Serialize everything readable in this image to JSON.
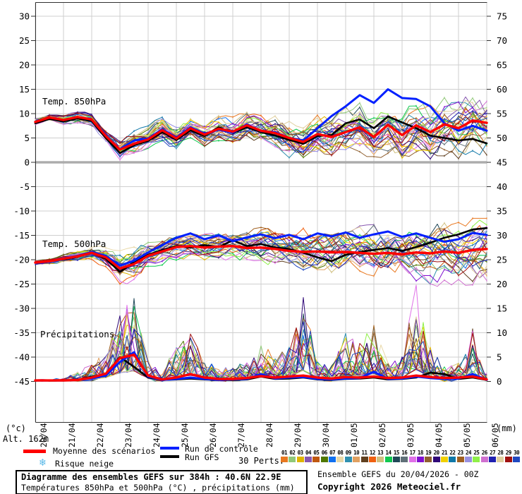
{
  "axes": {
    "left_unit": "(°c)",
    "right_unit": "(mm)",
    "altitude": "Alt. 162m",
    "left_ticks": [
      "30",
      "25",
      "20",
      "15",
      "10",
      "5",
      "0",
      "-5",
      "-10",
      "-15",
      "-20",
      "-25",
      "-30",
      "-35",
      "-40",
      "-45"
    ],
    "right_ticks": [
      "75",
      "70",
      "65",
      "60",
      "55",
      "50",
      "45",
      "40",
      "35",
      "30",
      "25",
      "20",
      "15",
      "10",
      "5",
      "0"
    ],
    "dates": [
      "20/04",
      "21/04",
      "22/04",
      "23/04",
      "24/04",
      "25/04",
      "26/04",
      "27/04",
      "28/04",
      "29/04",
      "30/04",
      "01/05",
      "02/05",
      "03/05",
      "04/05",
      "05/05",
      "06/05"
    ]
  },
  "panel_labels": {
    "t850": "Temp. 850hPa",
    "t500": "Temp. 500hPa",
    "precip": "Précipitations"
  },
  "legend": {
    "mean": {
      "label": "Moyenne des scénarios",
      "color": "#ff0000"
    },
    "control": {
      "label": "Run de contrôle",
      "color": "#0020ff"
    },
    "gfs": {
      "label": "Run GFS",
      "color": "#000000"
    },
    "perts_label": "30 Perts.",
    "pert_numbers": [
      "01",
      "02",
      "03",
      "04",
      "05",
      "06",
      "07",
      "08",
      "09",
      "10",
      "11",
      "12",
      "13",
      "14",
      "15",
      "16",
      "17",
      "18",
      "19",
      "20",
      "21",
      "22",
      "23",
      "24",
      "25",
      "26",
      "27",
      "28",
      "29",
      "30"
    ],
    "pert_colors": [
      "#e87820",
      "#90c878",
      "#e0b400",
      "#8858b0",
      "#c05810",
      "#507800",
      "#1070f0",
      "#e8d8a8",
      "#3090b0",
      "#e0a060",
      "#604020",
      "#f06010",
      "#d0c080",
      "#10c850",
      "#204858",
      "#607078",
      "#e070e8",
      "#8010d0",
      "#906030",
      "#300878",
      "#f0d000",
      "#1078a8",
      "#a06020",
      "#9890e0",
      "#90f048",
      "#d070d0",
      "#2020b0",
      "#e0d0a0",
      "#a01010",
      "#2048c0"
    ],
    "snow": {
      "icon": "❄",
      "label": "Risque neige",
      "icon_color": "#58b8e8"
    }
  },
  "footer": {
    "title": "Diagramme des ensembles GEFS sur 384h : 40.6N 22.9E",
    "subtitle": "Températures 850hPa et 500hPa (°C) , précipitations (mm)",
    "run_info": "Ensemble GEFS du 20/04/2026 - 00Z",
    "copyright": "Copyright 2026 Meteociel.fr"
  },
  "chart_data": {
    "type": "line",
    "title": "Diagramme des ensembles GEFS sur 384h : 40.6N 22.9E",
    "x_start": "20/04 00Z",
    "x_step_hours": 12,
    "total_hours": 384,
    "left_axis_range": [
      -45,
      30
    ],
    "right_axis_range": [
      0,
      75
    ],
    "grid": true,
    "members": 30,
    "panels": [
      {
        "id": "t850",
        "label": "Temp. 850hPa",
        "unit": "°C",
        "ylim": [
          -4.5,
          16.5
        ],
        "mean": [
          8.3,
          9.2,
          8.7,
          9.3,
          8.8,
          5.4,
          2.6,
          3.8,
          4.7,
          6.6,
          4.9,
          7.0,
          5.7,
          6.9,
          6.3,
          7.6,
          6.5,
          6.0,
          5.0,
          4.2,
          5.8,
          5.2,
          6.2,
          7.2,
          5.2,
          7.7,
          5.6,
          7.6,
          6.2,
          7.8,
          7.0,
          8.6,
          8.1
        ],
        "control": [
          8.3,
          9.2,
          8.7,
          9.3,
          8.8,
          5.5,
          2.7,
          4.5,
          4.9,
          6.8,
          5.1,
          7.2,
          5.9,
          6.7,
          6.1,
          7.8,
          6.4,
          6.2,
          5.0,
          4.5,
          7.0,
          9.5,
          11.5,
          13.8,
          12.2,
          15.0,
          13.2,
          13.0,
          11.5,
          8.0,
          6.5,
          7.5,
          6.5
        ],
        "gfs": [
          8.0,
          8.9,
          8.4,
          9.0,
          8.5,
          5.0,
          1.9,
          3.5,
          4.4,
          6.2,
          4.6,
          6.6,
          5.4,
          7.2,
          6.0,
          7.2,
          6.2,
          5.5,
          4.6,
          3.8,
          5.4,
          5.6,
          8.0,
          8.8,
          7.0,
          9.4,
          8.2,
          7.0,
          5.5,
          5.0,
          4.5,
          4.8,
          3.9
        ],
        "spread": [
          0.7,
          0.7,
          0.9,
          1.0,
          1.1,
          1.3,
          1.6,
          2.0,
          2.0,
          2.2,
          2.0,
          2.0,
          2.0,
          2.2,
          2.2,
          2.5,
          2.6,
          2.7,
          2.9,
          3.1,
          3.2,
          3.4,
          3.6,
          3.6,
          3.9,
          4.1,
          4.1,
          4.3,
          4.6,
          4.6,
          4.9,
          5.1,
          5.2
        ]
      },
      {
        "id": "t500",
        "label": "Temp. 500hPa",
        "unit": "°C",
        "ylim": [
          -27.5,
          -11.5
        ],
        "mean": [
          -20.6,
          -20.3,
          -19.8,
          -19.3,
          -18.6,
          -19.5,
          -21.8,
          -20.9,
          -19.2,
          -18.3,
          -17.4,
          -17.2,
          -17.5,
          -17.3,
          -17.2,
          -17.6,
          -17.5,
          -17.8,
          -18.2,
          -18.4,
          -18.3,
          -18.5,
          -18.4,
          -18.6,
          -18.8,
          -18.6,
          -18.9,
          -18.5,
          -18.7,
          -18.3,
          -18.6,
          -18.0,
          -17.8
        ],
        "control": [
          -20.6,
          -20.3,
          -19.7,
          -19.2,
          -18.4,
          -19.2,
          -21.2,
          -20.2,
          -18.5,
          -17.0,
          -15.5,
          -14.6,
          -15.8,
          -15.0,
          -16.2,
          -15.4,
          -14.8,
          -15.6,
          -14.9,
          -15.8,
          -14.6,
          -15.2,
          -14.4,
          -15.5,
          -14.8,
          -14.2,
          -15.3,
          -14.6,
          -15.5,
          -16.3,
          -15.8,
          -14.5,
          -14.9
        ],
        "gfs": [
          -20.6,
          -20.2,
          -19.9,
          -19.4,
          -18.5,
          -19.8,
          -22.5,
          -20.5,
          -19.0,
          -18.0,
          -17.2,
          -17.5,
          -17.0,
          -17.4,
          -16.0,
          -17.2,
          -16.8,
          -17.5,
          -17.8,
          -18.6,
          -19.5,
          -20.3,
          -19.0,
          -18.4,
          -18.0,
          -17.6,
          -18.2,
          -17.4,
          -16.5,
          -15.5,
          -14.8,
          -13.8,
          -13.5
        ],
        "spread": [
          0.5,
          0.5,
          0.7,
          0.9,
          1.1,
          1.6,
          2.6,
          2.8,
          2.2,
          2.0,
          2.0,
          2.1,
          2.1,
          2.2,
          2.5,
          2.8,
          3.0,
          3.0,
          3.2,
          3.5,
          3.5,
          3.8,
          4.0,
          4.0,
          4.2,
          4.5,
          4.5,
          4.8,
          5.0,
          5.0,
          5.0,
          5.2,
          5.5
        ]
      },
      {
        "id": "precip",
        "label": "Précipitations",
        "unit": "mm",
        "ylim": [
          0,
          19.8
        ],
        "mean": [
          0.2,
          0.2,
          0.2,
          0.3,
          0.8,
          1.6,
          4.8,
          5.5,
          1.2,
          0.4,
          0.8,
          1.5,
          0.8,
          0.5,
          0.5,
          0.7,
          1.1,
          0.8,
          1.0,
          1.2,
          0.8,
          0.6,
          0.9,
          0.8,
          1.0,
          0.7,
          0.8,
          1.2,
          0.9,
          0.7,
          0.8,
          1.0,
          0.4
        ],
        "control": [
          0.2,
          0.2,
          0.2,
          0.3,
          0.6,
          1.2,
          4.0,
          6.0,
          1.0,
          0.3,
          0.5,
          0.8,
          0.5,
          0.3,
          0.4,
          0.5,
          1.5,
          0.6,
          0.8,
          0.9,
          0.5,
          0.4,
          0.6,
          0.7,
          2.0,
          0.5,
          0.6,
          1.0,
          0.7,
          0.5,
          0.6,
          1.5,
          0.3
        ],
        "gfs": [
          0.2,
          0.2,
          0.2,
          0.3,
          1.0,
          1.5,
          5.0,
          3.0,
          0.8,
          0.3,
          0.4,
          0.6,
          0.4,
          0.3,
          0.3,
          0.4,
          1.0,
          0.5,
          0.6,
          0.8,
          0.4,
          0.3,
          0.5,
          0.6,
          0.8,
          0.4,
          0.5,
          0.8,
          1.8,
          1.5,
          0.5,
          0.8,
          0.3
        ],
        "envelope": [
          0.3,
          0.3,
          0.5,
          2.0,
          3.5,
          6.0,
          14.0,
          17.0,
          5.0,
          1.5,
          8.0,
          10.0,
          4.0,
          3.0,
          3.0,
          4.0,
          9.0,
          5.0,
          7.0,
          18.0,
          4.0,
          3.0,
          10.0,
          8.0,
          12.0,
          4.0,
          5.0,
          20.0,
          7.0,
          3.0,
          4.0,
          11.0,
          1.5
        ]
      }
    ]
  }
}
